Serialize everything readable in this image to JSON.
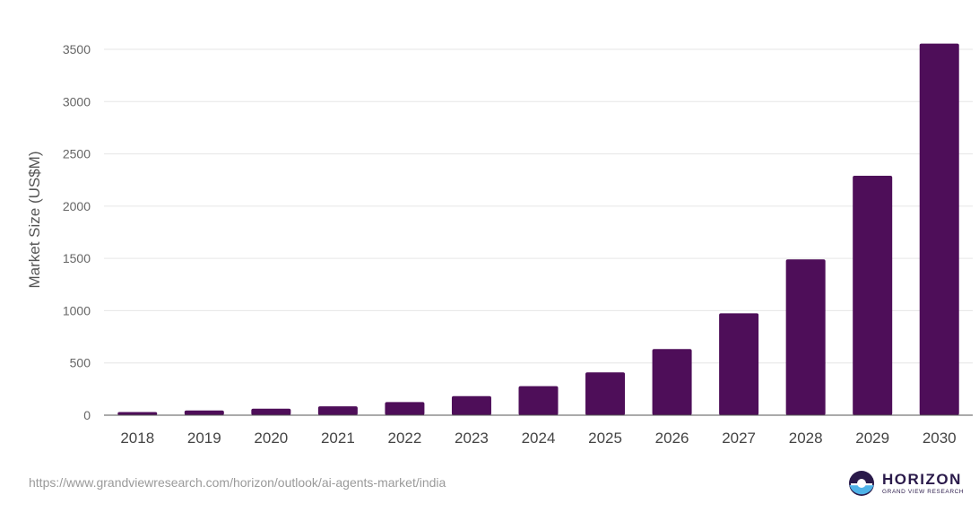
{
  "chart_data": {
    "type": "bar",
    "title": "",
    "xlabel": "",
    "ylabel": "Market Size (US$M)",
    "categories": [
      "2018",
      "2019",
      "2020",
      "2021",
      "2022",
      "2023",
      "2024",
      "2025",
      "2026",
      "2027",
      "2028",
      "2029",
      "2030"
    ],
    "values": [
      30,
      45,
      62,
      85,
      125,
      182,
      278,
      410,
      633,
      975,
      1490,
      2290,
      3555
    ],
    "ylim": [
      0,
      3500
    ],
    "yticks": [
      0,
      500,
      1000,
      1500,
      2000,
      2500,
      3000,
      3500
    ],
    "grid": true,
    "bar_color": "#4e0e59"
  },
  "footer": {
    "source_url": "https://www.grandviewresearch.com/horizon/outlook/ai-agents-market/india"
  },
  "logo": {
    "name": "HORIZON",
    "sub": "GRAND VIEW RESEARCH",
    "colors": {
      "dark": "#2a1a4a",
      "light": "#4fb3e8"
    }
  }
}
